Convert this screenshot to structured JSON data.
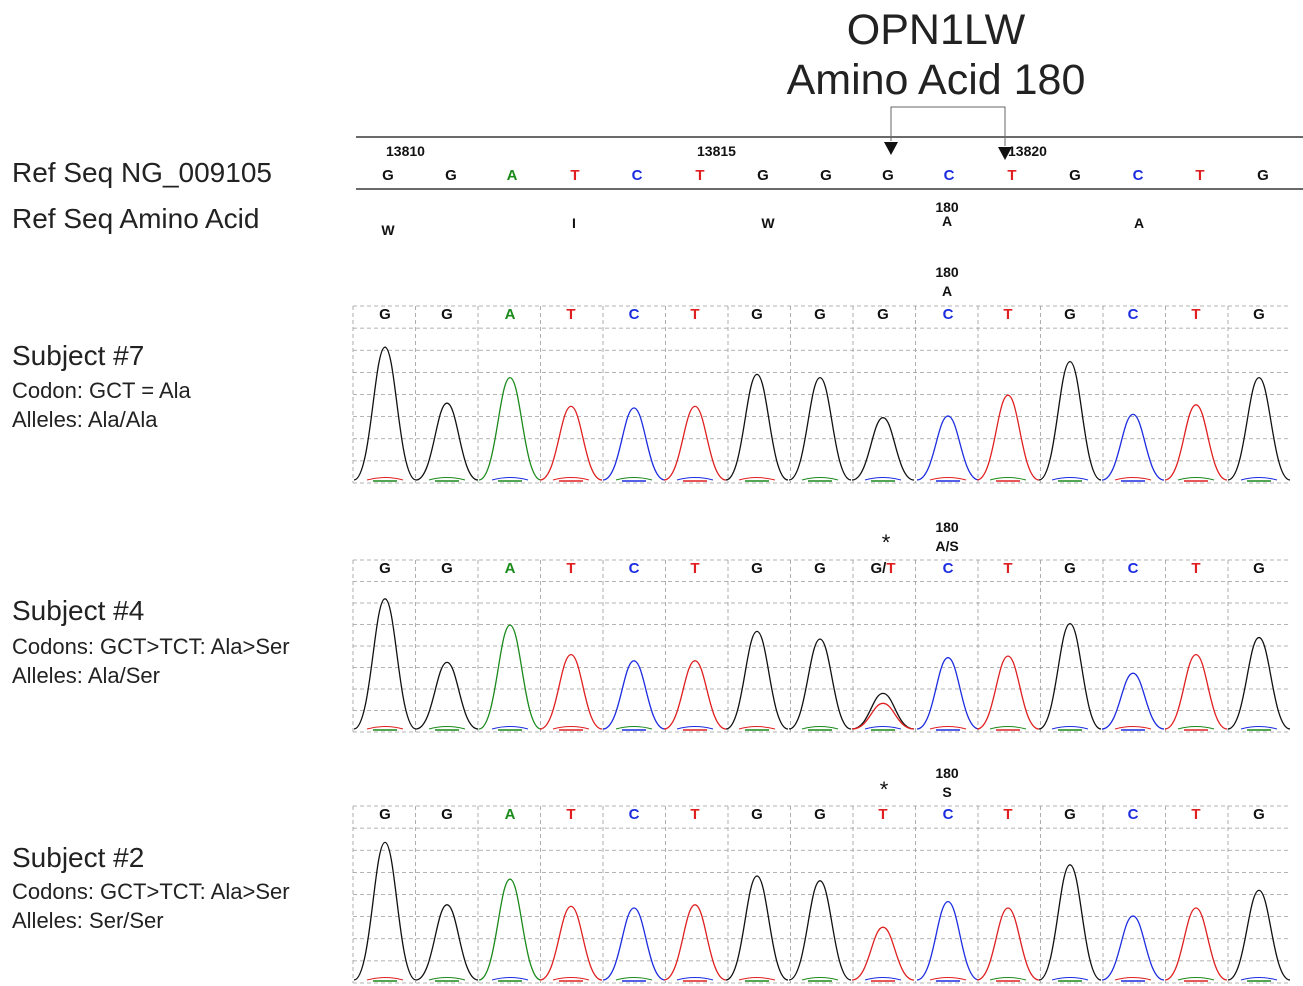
{
  "title": {
    "line1": "OPN1LW",
    "line2": "Amino Acid 180"
  },
  "reference": {
    "seq_label": "Ref Seq NG_009105",
    "aa_label": "Ref Seq Amino Acid",
    "positions": [
      "13810",
      "13815",
      "13820"
    ],
    "bases": [
      "G",
      "G",
      "A",
      "T",
      "C",
      "T",
      "G",
      "G",
      "G",
      "C",
      "T",
      "G",
      "C",
      "T",
      "G"
    ],
    "amino_acids": [
      "W",
      "I",
      "W",
      "A",
      "A"
    ],
    "codon_number": "180"
  },
  "colors": {
    "G": "#111111",
    "A": "#1a8a1a",
    "T": "#e02020",
    "C": "#1c2ce0"
  },
  "subjects": [
    {
      "name": "Subject #7",
      "line2": "Codon: GCT = Ala",
      "line3": "Alleles: Ala/Ala",
      "codon_number": "180",
      "aa": "A",
      "marker": "",
      "bases": [
        "G",
        "G",
        "A",
        "T",
        "C",
        "T",
        "G",
        "G",
        "G",
        "C",
        "T",
        "G",
        "C",
        "T",
        "G"
      ],
      "peak_levels": [
        0.83,
        0.48,
        0.64,
        0.46,
        0.45,
        0.46,
        0.66,
        0.64,
        0.39,
        0.4,
        0.53,
        0.74,
        0.41,
        0.47,
        0.64
      ]
    },
    {
      "name": "Subject #4",
      "line2": "Codons: GCT>TCT: Ala>Ser",
      "line3": "Alleles: Ala/Ser",
      "codon_number": "180",
      "aa": "A/S",
      "marker": "*",
      "bases": [
        "G",
        "G",
        "A",
        "T",
        "C",
        "T",
        "G",
        "G",
        "G/T",
        "C",
        "T",
        "G",
        "C",
        "T",
        "G"
      ],
      "peak_levels": [
        0.84,
        0.43,
        0.67,
        0.48,
        0.44,
        0.44,
        0.63,
        0.58,
        0.23,
        0.46,
        0.47,
        0.68,
        0.36,
        0.48,
        0.59
      ]
    },
    {
      "name": "Subject #2",
      "line2": "Codons: GCT>TCT: Ala>Ser",
      "line3": "Alleles: Ser/Ser",
      "codon_number": "180",
      "aa": "S",
      "marker": "*",
      "bases": [
        "G",
        "G",
        "A",
        "T",
        "C",
        "T",
        "G",
        "G",
        "T",
        "C",
        "T",
        "G",
        "C",
        "T",
        "G"
      ],
      "peak_levels": [
        0.86,
        0.47,
        0.63,
        0.46,
        0.45,
        0.47,
        0.65,
        0.62,
        0.33,
        0.49,
        0.45,
        0.72,
        0.4,
        0.45,
        0.56
      ]
    }
  ]
}
